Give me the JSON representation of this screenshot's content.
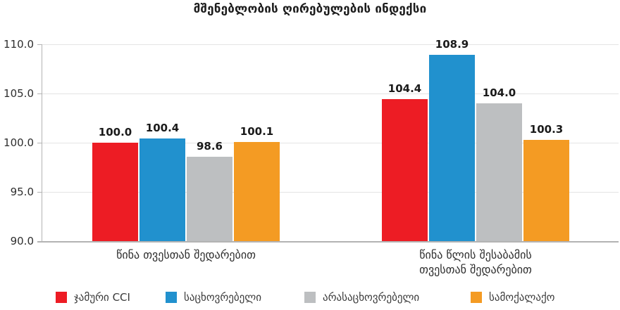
{
  "title": "მშენებლობის ღირებულების ინდექსი",
  "chart_data": {
    "type": "bar",
    "title": "მშენებლობის ღირებულების ინდექსი",
    "categories": [
      "წინა თვესთან შედარებით",
      "წინა წლის შესაბამის\nთვესთან შედარებით"
    ],
    "series": [
      {
        "name": "ჯამური CCI",
        "color": "#ED1C24",
        "values": [
          100.0,
          104.4
        ]
      },
      {
        "name": "საცხოვრებელი",
        "color": "#2191CE",
        "values": [
          100.4,
          108.9
        ]
      },
      {
        "name": "არასაცხოვრებელი",
        "color": "#BDBFC1",
        "values": [
          98.6,
          104.0
        ]
      },
      {
        "name": "სამოქალაქო",
        "color": "#F49B23",
        "values": [
          100.1,
          100.3
        ]
      }
    ],
    "ylim": [
      90,
      110
    ],
    "yticks": [
      110.0,
      105.0,
      100.0,
      95.0,
      90.0
    ],
    "ytick_decimals": 1,
    "value_label_decimals": 1,
    "grid": true,
    "legend_position": "bottom",
    "xlabel": "",
    "ylabel": ""
  },
  "colors": {
    "gridline": "#e4e4e4",
    "axis": "#b3b3b3",
    "text": "#2e2e2e"
  }
}
